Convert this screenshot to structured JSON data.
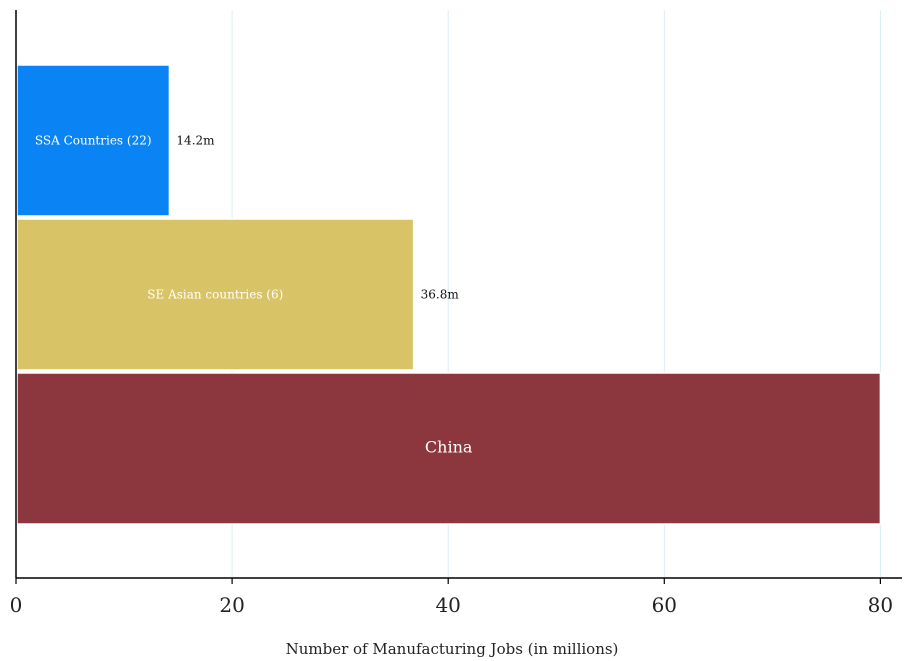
{
  "chart_data": {
    "type": "bar",
    "orientation": "horizontal",
    "xlabel": "Number of Manufacturing Jobs (in millions)",
    "ylabel": "",
    "xlim": [
      0,
      82
    ],
    "xticks": [
      0,
      20,
      40,
      60,
      80
    ],
    "grid": "vertical",
    "legend": "none",
    "categories": [
      "SSA Countries (22)",
      "SE Asian countries (6)",
      "China"
    ],
    "values": [
      14.2,
      36.8,
      80
    ],
    "value_labels": [
      "14.2m",
      "36.8m",
      ""
    ],
    "colors": [
      "#0a84f5",
      "#d8c466",
      "#8c363d"
    ]
  }
}
